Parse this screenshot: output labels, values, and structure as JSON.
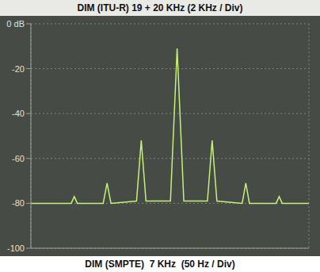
{
  "chart_data": {
    "type": "line",
    "title": "DIM (ITU-R) 19 + 20 KHz (2 KHz / Div)",
    "subtitle": "DIM (SMPTE)  7 KHz  (50 Hz / Div)",
    "x": [
      0,
      1.45,
      1.56,
      1.67,
      2.6,
      2.74,
      2.88,
      3.8,
      3.97,
      4.14,
      5.02,
      5.26,
      5.5,
      6.35,
      6.52,
      6.69,
      7.6,
      7.73,
      7.86,
      8.82,
      8.93,
      9.04,
      10
    ],
    "values": [
      -80,
      -80,
      -77,
      -80,
      -80,
      -71,
      -80,
      -79,
      -52,
      -79,
      -79,
      -11,
      -79,
      -79,
      -52,
      -79,
      -80,
      -71,
      -80,
      -80,
      -77,
      -80,
      -80
    ],
    "color": "#c6f07a",
    "xlim": [
      0,
      10
    ],
    "xticks": [
      0,
      1,
      2,
      3,
      4,
      5,
      6,
      7,
      8,
      9,
      10
    ],
    "ylim": [
      -100,
      0
    ],
    "yticks": [
      {
        "value": 0,
        "label": "0 dB"
      },
      -20,
      -40,
      -60,
      -80,
      -100
    ],
    "grid": true,
    "tick_labels": "y"
  }
}
